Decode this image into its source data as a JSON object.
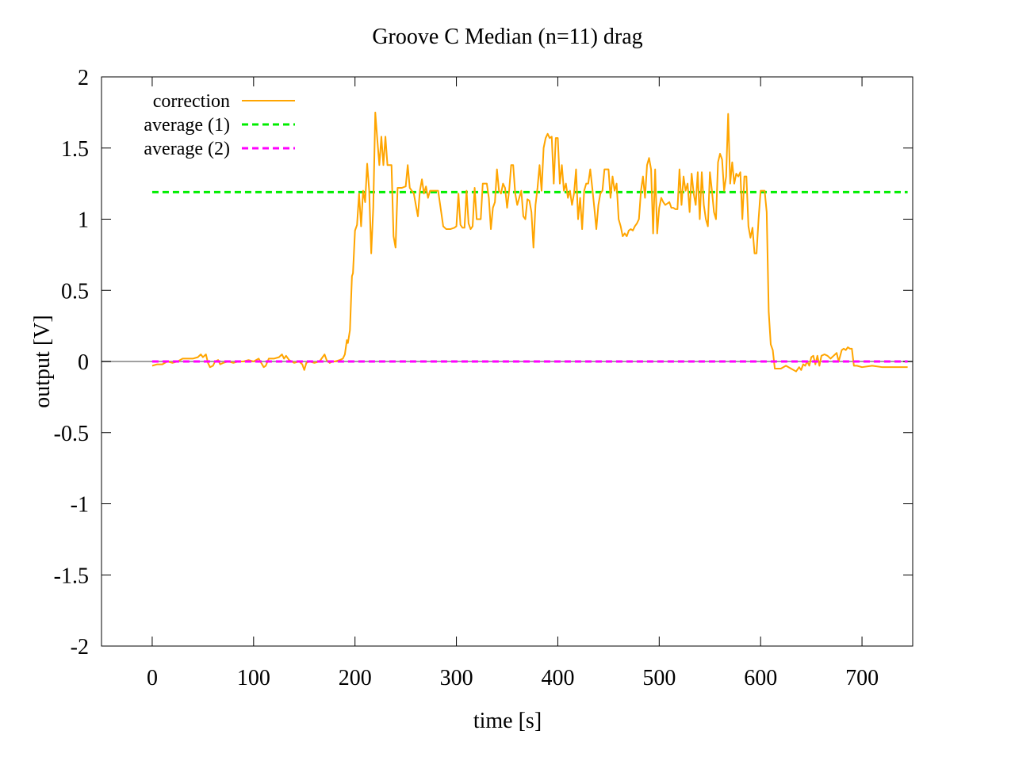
{
  "chart_data": {
    "type": "line",
    "title": "Groove C  Median (n=11) drag",
    "xlabel": "time [s]",
    "ylabel": "output [V]",
    "xlim": [
      -50,
      750
    ],
    "ylim": [
      -2,
      2
    ],
    "xticks": [
      0,
      100,
      200,
      300,
      400,
      500,
      600,
      700
    ],
    "yticks": [
      2,
      1.5,
      1,
      0.5,
      0,
      -0.5,
      -1,
      -1.5,
      -2
    ],
    "grid": false,
    "zero_line": true,
    "legend_position": "top-left",
    "series": [
      {
        "name": "correction",
        "color": "#ffa500",
        "style": "solid",
        "points": [
          [
            0,
            -0.03
          ],
          [
            5,
            -0.02
          ],
          [
            10,
            -0.02
          ],
          [
            15,
            0.0
          ],
          [
            20,
            -0.01
          ],
          [
            25,
            0.0
          ],
          [
            30,
            0.02
          ],
          [
            35,
            0.02
          ],
          [
            40,
            0.02
          ],
          [
            45,
            0.03
          ],
          [
            48,
            0.05
          ],
          [
            50,
            0.03
          ],
          [
            53,
            0.05
          ],
          [
            55,
            -0.01
          ],
          [
            57,
            -0.04
          ],
          [
            60,
            -0.03
          ],
          [
            62,
            0.0
          ],
          [
            65,
            0.01
          ],
          [
            67,
            -0.02
          ],
          [
            70,
            -0.01
          ],
          [
            75,
            0.0
          ],
          [
            80,
            -0.01
          ],
          [
            85,
            0.0
          ],
          [
            90,
            0.0
          ],
          [
            95,
            0.01
          ],
          [
            100,
            0.0
          ],
          [
            105,
            0.02
          ],
          [
            110,
            -0.04
          ],
          [
            112,
            -0.03
          ],
          [
            115,
            0.02
          ],
          [
            120,
            0.02
          ],
          [
            125,
            0.03
          ],
          [
            128,
            0.05
          ],
          [
            130,
            0.02
          ],
          [
            132,
            0.04
          ],
          [
            135,
            0.01
          ],
          [
            140,
            -0.01
          ],
          [
            145,
            0.0
          ],
          [
            148,
            -0.02
          ],
          [
            150,
            -0.06
          ],
          [
            152,
            -0.01
          ],
          [
            155,
            0.0
          ],
          [
            160,
            -0.01
          ],
          [
            165,
            0.0
          ],
          [
            168,
            0.03
          ],
          [
            170,
            0.05
          ],
          [
            172,
            0.01
          ],
          [
            175,
            -0.01
          ],
          [
            178,
            0.0
          ],
          [
            180,
            0.0
          ],
          [
            185,
            0.01
          ],
          [
            188,
            0.02
          ],
          [
            190,
            0.05
          ],
          [
            192,
            0.15
          ],
          [
            193,
            0.13
          ],
          [
            195,
            0.22
          ],
          [
            197,
            0.6
          ],
          [
            198,
            0.62
          ],
          [
            200,
            0.92
          ],
          [
            202,
            0.96
          ],
          [
            204,
            1.18
          ],
          [
            206,
            0.95
          ],
          [
            208,
            1.2
          ],
          [
            210,
            1.12
          ],
          [
            212,
            1.39
          ],
          [
            214,
            1.2
          ],
          [
            216,
            0.76
          ],
          [
            218,
            1.08
          ],
          [
            220,
            1.75
          ],
          [
            222,
            1.56
          ],
          [
            224,
            1.38
          ],
          [
            226,
            1.58
          ],
          [
            228,
            1.38
          ],
          [
            230,
            1.58
          ],
          [
            232,
            1.38
          ],
          [
            236,
            1.38
          ],
          [
            238,
            0.88
          ],
          [
            240,
            0.8
          ],
          [
            242,
            1.22
          ],
          [
            246,
            1.22
          ],
          [
            250,
            1.23
          ],
          [
            252,
            1.38
          ],
          [
            254,
            1.22
          ],
          [
            258,
            1.18
          ],
          [
            260,
            1.1
          ],
          [
            262,
            1.02
          ],
          [
            264,
            1.2
          ],
          [
            266,
            1.28
          ],
          [
            268,
            1.18
          ],
          [
            270,
            1.23
          ],
          [
            272,
            1.15
          ],
          [
            274,
            1.2
          ],
          [
            278,
            1.2
          ],
          [
            282,
            1.2
          ],
          [
            285,
            1.05
          ],
          [
            287,
            0.95
          ],
          [
            290,
            0.93
          ],
          [
            294,
            0.93
          ],
          [
            298,
            0.94
          ],
          [
            300,
            0.95
          ],
          [
            302,
            1.18
          ],
          [
            304,
            0.96
          ],
          [
            306,
            0.94
          ],
          [
            308,
            0.94
          ],
          [
            310,
            1.2
          ],
          [
            312,
            0.97
          ],
          [
            314,
            0.93
          ],
          [
            316,
            0.95
          ],
          [
            318,
            1.22
          ],
          [
            320,
            1.0
          ],
          [
            324,
            1.0
          ],
          [
            326,
            1.25
          ],
          [
            330,
            1.25
          ],
          [
            332,
            1.15
          ],
          [
            334,
            0.93
          ],
          [
            336,
            1.08
          ],
          [
            338,
            1.12
          ],
          [
            340,
            1.35
          ],
          [
            342,
            1.2
          ],
          [
            344,
            1.18
          ],
          [
            346,
            1.25
          ],
          [
            348,
            1.22
          ],
          [
            350,
            1.08
          ],
          [
            352,
            1.2
          ],
          [
            354,
            1.38
          ],
          [
            356,
            1.38
          ],
          [
            358,
            1.18
          ],
          [
            360,
            1.1
          ],
          [
            362,
            1.15
          ],
          [
            364,
            1.2
          ],
          [
            366,
            1.02
          ],
          [
            368,
            1.0
          ],
          [
            370,
            1.14
          ],
          [
            372,
            1.13
          ],
          [
            374,
            1.05
          ],
          [
            376,
            0.8
          ],
          [
            378,
            1.1
          ],
          [
            380,
            1.22
          ],
          [
            382,
            1.38
          ],
          [
            384,
            1.2
          ],
          [
            386,
            1.5
          ],
          [
            388,
            1.57
          ],
          [
            390,
            1.6
          ],
          [
            392,
            1.57
          ],
          [
            394,
            1.58
          ],
          [
            396,
            1.25
          ],
          [
            398,
            1.57
          ],
          [
            400,
            1.57
          ],
          [
            402,
            1.25
          ],
          [
            404,
            1.38
          ],
          [
            406,
            1.2
          ],
          [
            408,
            1.25
          ],
          [
            410,
            1.15
          ],
          [
            412,
            1.2
          ],
          [
            414,
            1.1
          ],
          [
            416,
            1.18
          ],
          [
            418,
            1.35
          ],
          [
            420,
            1.0
          ],
          [
            422,
            1.15
          ],
          [
            424,
            0.93
          ],
          [
            426,
            1.2
          ],
          [
            428,
            1.25
          ],
          [
            430,
            1.25
          ],
          [
            432,
            1.35
          ],
          [
            434,
            1.22
          ],
          [
            436,
            1.08
          ],
          [
            438,
            0.93
          ],
          [
            440,
            1.1
          ],
          [
            442,
            1.18
          ],
          [
            444,
            1.2
          ],
          [
            446,
            1.35
          ],
          [
            448,
            1.35
          ],
          [
            450,
            1.35
          ],
          [
            452,
            1.15
          ],
          [
            454,
            1.3
          ],
          [
            456,
            1.2
          ],
          [
            458,
            1.25
          ],
          [
            460,
            1.0
          ],
          [
            462,
            0.95
          ],
          [
            464,
            0.88
          ],
          [
            466,
            0.9
          ],
          [
            468,
            0.88
          ],
          [
            470,
            0.92
          ],
          [
            472,
            0.93
          ],
          [
            474,
            0.92
          ],
          [
            476,
            0.95
          ],
          [
            478,
            0.97
          ],
          [
            480,
            1.0
          ],
          [
            482,
            1.2
          ],
          [
            484,
            1.3
          ],
          [
            486,
            1.15
          ],
          [
            488,
            1.38
          ],
          [
            490,
            1.43
          ],
          [
            492,
            1.35
          ],
          [
            494,
            0.9
          ],
          [
            496,
            1.35
          ],
          [
            498,
            0.9
          ],
          [
            500,
            1.08
          ],
          [
            502,
            1.15
          ],
          [
            504,
            1.12
          ],
          [
            506,
            1.1
          ],
          [
            510,
            1.12
          ],
          [
            512,
            1.08
          ],
          [
            514,
            1.08
          ],
          [
            516,
            1.07
          ],
          [
            518,
            1.07
          ],
          [
            520,
            1.35
          ],
          [
            522,
            1.1
          ],
          [
            524,
            1.3
          ],
          [
            526,
            1.2
          ],
          [
            528,
            1.25
          ],
          [
            530,
            1.05
          ],
          [
            532,
            1.32
          ],
          [
            534,
            1.18
          ],
          [
            536,
            1.1
          ],
          [
            538,
            1.33
          ],
          [
            540,
            1.0
          ],
          [
            542,
            1.33
          ],
          [
            544,
            1.1
          ],
          [
            546,
            1.0
          ],
          [
            548,
            0.95
          ],
          [
            550,
            1.33
          ],
          [
            552,
            1.2
          ],
          [
            554,
            1.05
          ],
          [
            556,
            1.0
          ],
          [
            558,
            1.4
          ],
          [
            560,
            1.46
          ],
          [
            562,
            1.42
          ],
          [
            564,
            1.2
          ],
          [
            566,
            1.3
          ],
          [
            568,
            1.74
          ],
          [
            570,
            1.25
          ],
          [
            572,
            1.4
          ],
          [
            574,
            1.25
          ],
          [
            576,
            1.32
          ],
          [
            578,
            1.3
          ],
          [
            580,
            1.33
          ],
          [
            582,
            1.0
          ],
          [
            584,
            1.3
          ],
          [
            586,
            1.3
          ],
          [
            588,
            0.95
          ],
          [
            590,
            0.87
          ],
          [
            592,
            0.94
          ],
          [
            594,
            0.76
          ],
          [
            596,
            0.76
          ],
          [
            598,
            1.0
          ],
          [
            600,
            1.2
          ],
          [
            602,
            1.2
          ],
          [
            604,
            1.2
          ],
          [
            606,
            1.05
          ],
          [
            608,
            0.35
          ],
          [
            610,
            0.12
          ],
          [
            612,
            0.08
          ],
          [
            614,
            -0.05
          ],
          [
            616,
            -0.05
          ],
          [
            620,
            -0.05
          ],
          [
            625,
            -0.03
          ],
          [
            630,
            -0.05
          ],
          [
            635,
            -0.07
          ],
          [
            638,
            -0.04
          ],
          [
            640,
            -0.06
          ],
          [
            642,
            -0.02
          ],
          [
            644,
            -0.03
          ],
          [
            646,
            0.0
          ],
          [
            648,
            -0.03
          ],
          [
            650,
            0.03
          ],
          [
            652,
            0.04
          ],
          [
            654,
            -0.02
          ],
          [
            656,
            0.04
          ],
          [
            658,
            -0.03
          ],
          [
            660,
            0.04
          ],
          [
            663,
            0.05
          ],
          [
            666,
            0.04
          ],
          [
            669,
            0.02
          ],
          [
            672,
            0.04
          ],
          [
            675,
            0.06
          ],
          [
            677,
            0.0
          ],
          [
            680,
            0.08
          ],
          [
            682,
            0.09
          ],
          [
            684,
            0.08
          ],
          [
            686,
            0.1
          ],
          [
            688,
            0.09
          ],
          [
            690,
            0.09
          ],
          [
            692,
            -0.03
          ],
          [
            695,
            -0.03
          ],
          [
            700,
            -0.04
          ],
          [
            710,
            -0.03
          ],
          [
            720,
            -0.04
          ],
          [
            730,
            -0.04
          ],
          [
            740,
            -0.04
          ],
          [
            745,
            -0.04
          ]
        ]
      },
      {
        "name": "average (1)",
        "color": "#00ee00",
        "style": "dashed",
        "points": [
          [
            0,
            1.19
          ],
          [
            745,
            1.19
          ]
        ]
      },
      {
        "name": "average (2)",
        "color": "#ff00ff",
        "style": "dashed",
        "points": [
          [
            0,
            0.0
          ],
          [
            745,
            0.0
          ]
        ]
      }
    ]
  }
}
